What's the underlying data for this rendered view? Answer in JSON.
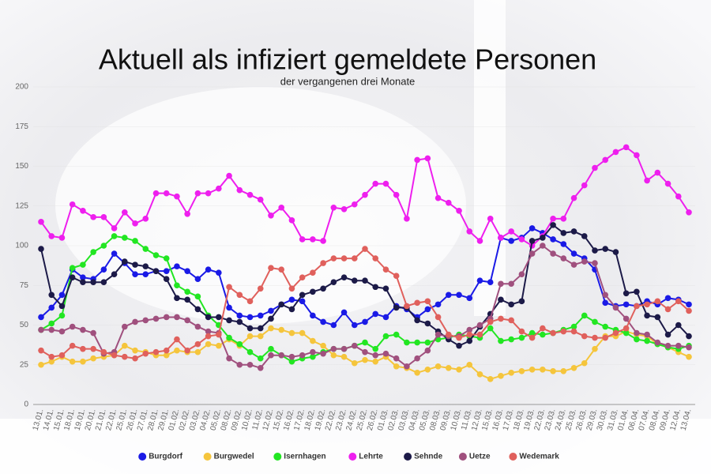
{
  "chart_data": {
    "type": "line",
    "title": "Aktuell als infiziert gemeldete Personen",
    "subtitle": "der vergangenen drei Monate",
    "categories": [
      "13.01.",
      "14.01.",
      "15.01.",
      "18.01.",
      "19.01.",
      "20.01.",
      "21.01.",
      "22.01.",
      "25.01.",
      "26.01.",
      "27.01.",
      "28.01.",
      "29.01.",
      "01.02.",
      "02.02.",
      "03.02.",
      "04.02.",
      "05.02.",
      "08.02.",
      "09.02.",
      "10.02.",
      "11.02.",
      "12.02.",
      "15.02.",
      "16.02.",
      "17.02.",
      "18.02.",
      "19.02.",
      "22.02.",
      "23.02.",
      "24.02.",
      "25.02.",
      "26.02.",
      "01.03.",
      "02.03.",
      "03.03.",
      "04.03.",
      "05.03.",
      "08.03.",
      "09.03.",
      "10.03.",
      "11.03.",
      "12.03.",
      "15.03.",
      "16.03.",
      "17.03.",
      "18.03.",
      "19.03.",
      "22.03.",
      "23.03.",
      "24.03.",
      "25.03.",
      "26.03.",
      "29.03.",
      "30.03.",
      "31.03.",
      "01.04.",
      "06.04.",
      "07.04.",
      "08.04.",
      "09.04.",
      "12.04.",
      "13.04."
    ],
    "series": [
      {
        "name": "Burgdorf",
        "color": "#1a1ae6",
        "values": [
          55,
          61,
          69,
          85,
          80,
          79,
          85,
          95,
          89,
          82,
          82,
          84,
          84,
          87,
          84,
          79,
          85,
          83,
          61,
          56,
          55,
          56,
          59,
          63,
          66,
          65,
          56,
          52,
          50,
          58,
          50,
          52,
          57,
          55,
          62,
          60,
          55,
          60,
          63,
          69,
          69,
          67,
          78,
          77,
          105,
          103,
          105,
          111,
          108,
          104,
          101,
          95,
          92,
          85,
          64,
          62,
          63,
          62,
          65,
          63,
          67,
          66,
          63
        ]
      },
      {
        "name": "Burgwedel",
        "color": "#f5c53c",
        "values": [
          25,
          27,
          30,
          27,
          27,
          29,
          30,
          31,
          37,
          34,
          33,
          31,
          31,
          34,
          33,
          33,
          38,
          37,
          41,
          37,
          43,
          43,
          48,
          47,
          45,
          45,
          40,
          37,
          31,
          30,
          26,
          28,
          27,
          30,
          24,
          23,
          20,
          22,
          24,
          23,
          22,
          25,
          19,
          16,
          18,
          20,
          21,
          22,
          22,
          21,
          21,
          23,
          26,
          35,
          43,
          43,
          46,
          44,
          43,
          38,
          36,
          33,
          30
        ]
      },
      {
        "name": "Isernhagen",
        "color": "#22e622",
        "values": [
          47,
          51,
          56,
          86,
          88,
          96,
          100,
          106,
          105,
          103,
          98,
          94,
          92,
          75,
          71,
          68,
          56,
          50,
          42,
          38,
          33,
          29,
          35,
          31,
          27,
          29,
          30,
          33,
          35,
          35,
          37,
          39,
          35,
          43,
          44,
          39,
          39,
          39,
          41,
          42,
          44,
          43,
          42,
          48,
          40,
          41,
          42,
          45,
          44,
          45,
          47,
          49,
          56,
          52,
          49,
          47,
          45,
          41,
          40,
          38,
          36,
          35,
          37
        ]
      },
      {
        "name": "Lehrte",
        "color": "#ee1fee",
        "values": [
          115,
          106,
          105,
          126,
          122,
          118,
          118,
          111,
          121,
          114,
          117,
          133,
          133,
          131,
          120,
          133,
          133,
          136,
          144,
          135,
          132,
          129,
          119,
          124,
          116,
          104,
          104,
          103,
          124,
          123,
          126,
          132,
          139,
          139,
          132,
          117,
          154,
          155,
          130,
          127,
          122,
          109,
          103,
          117,
          105,
          109,
          104,
          100,
          106,
          117,
          117,
          130,
          138,
          149,
          154,
          159,
          162,
          157,
          141,
          146,
          139,
          131,
          121
        ]
      },
      {
        "name": "Sehnde",
        "color": "#1c1a48",
        "values": [
          98,
          69,
          62,
          80,
          77,
          77,
          77,
          82,
          90,
          88,
          87,
          84,
          79,
          67,
          66,
          60,
          55,
          55,
          53,
          52,
          48,
          48,
          54,
          63,
          60,
          69,
          71,
          73,
          77,
          80,
          78,
          78,
          74,
          73,
          61,
          61,
          53,
          51,
          46,
          41,
          37,
          40,
          49,
          57,
          66,
          63,
          65,
          103,
          105,
          113,
          108,
          109,
          106,
          97,
          98,
          96,
          70,
          71,
          56,
          55,
          44,
          50,
          43
        ]
      },
      {
        "name": "Uetze",
        "color": "#a0507e",
        "values": [
          47,
          47,
          46,
          49,
          47,
          45,
          32,
          33,
          49,
          52,
          53,
          54,
          55,
          55,
          53,
          49,
          46,
          45,
          29,
          25,
          25,
          23,
          31,
          31,
          30,
          31,
          33,
          32,
          35,
          35,
          37,
          33,
          31,
          32,
          29,
          24,
          29,
          34,
          44,
          43,
          43,
          47,
          50,
          54,
          76,
          76,
          82,
          95,
          100,
          95,
          92,
          88,
          90,
          89,
          69,
          61,
          54,
          45,
          44,
          39,
          37,
          37,
          36
        ]
      },
      {
        "name": "Wedemark",
        "color": "#e0605c",
        "values": [
          34,
          30,
          31,
          37,
          35,
          35,
          33,
          31,
          30,
          29,
          32,
          33,
          34,
          41,
          34,
          38,
          43,
          44,
          74,
          69,
          65,
          73,
          86,
          85,
          73,
          80,
          83,
          89,
          92,
          92,
          92,
          98,
          92,
          85,
          81,
          62,
          64,
          65,
          55,
          44,
          42,
          44,
          44,
          52,
          54,
          53,
          46,
          42,
          48,
          45,
          46,
          46,
          43,
          42,
          42,
          45,
          48,
          62,
          63,
          65,
          60,
          65,
          59
        ]
      }
    ],
    "ylim": [
      0,
      200
    ],
    "yticks": [
      0,
      25,
      50,
      75,
      100,
      125,
      150,
      175,
      200
    ]
  }
}
